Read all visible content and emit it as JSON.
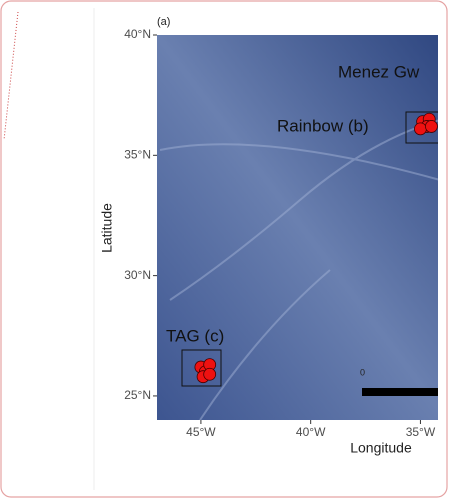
{
  "chart_data": {
    "type": "map",
    "panel_label": "(a)",
    "xlabel": "Longitude",
    "ylabel": "Latitude",
    "xlim": [
      -47,
      -34.2
    ],
    "ylim": [
      24,
      40
    ],
    "xticks": [
      {
        "value": -45,
        "label": "45°W"
      },
      {
        "value": -40,
        "label": "40°W"
      },
      {
        "value": -35,
        "label": "35°W"
      }
    ],
    "yticks": [
      {
        "value": 25,
        "label": "25°N"
      },
      {
        "value": 30,
        "label": "30°N"
      },
      {
        "value": 35,
        "label": "35°N"
      },
      {
        "value": 40,
        "label": "40°N"
      }
    ],
    "annotations": [
      "Menez Gw",
      "Rainbow (b)",
      "TAG (c)"
    ],
    "scale_label": "0",
    "series": [
      {
        "color": "#ee1111",
        "x": [
          -34.9,
          -34.6,
          -34.7,
          -35.0,
          -34.5
        ],
        "values": [
          36.4,
          36.5,
          36.2,
          36.1,
          36.2
        ]
      },
      {
        "color": "#ee1111",
        "x": [
          -45.0,
          -44.8,
          -44.6,
          -44.9,
          -44.6
        ],
        "values": [
          26.2,
          26.0,
          26.3,
          25.8,
          25.9
        ]
      }
    ]
  }
}
